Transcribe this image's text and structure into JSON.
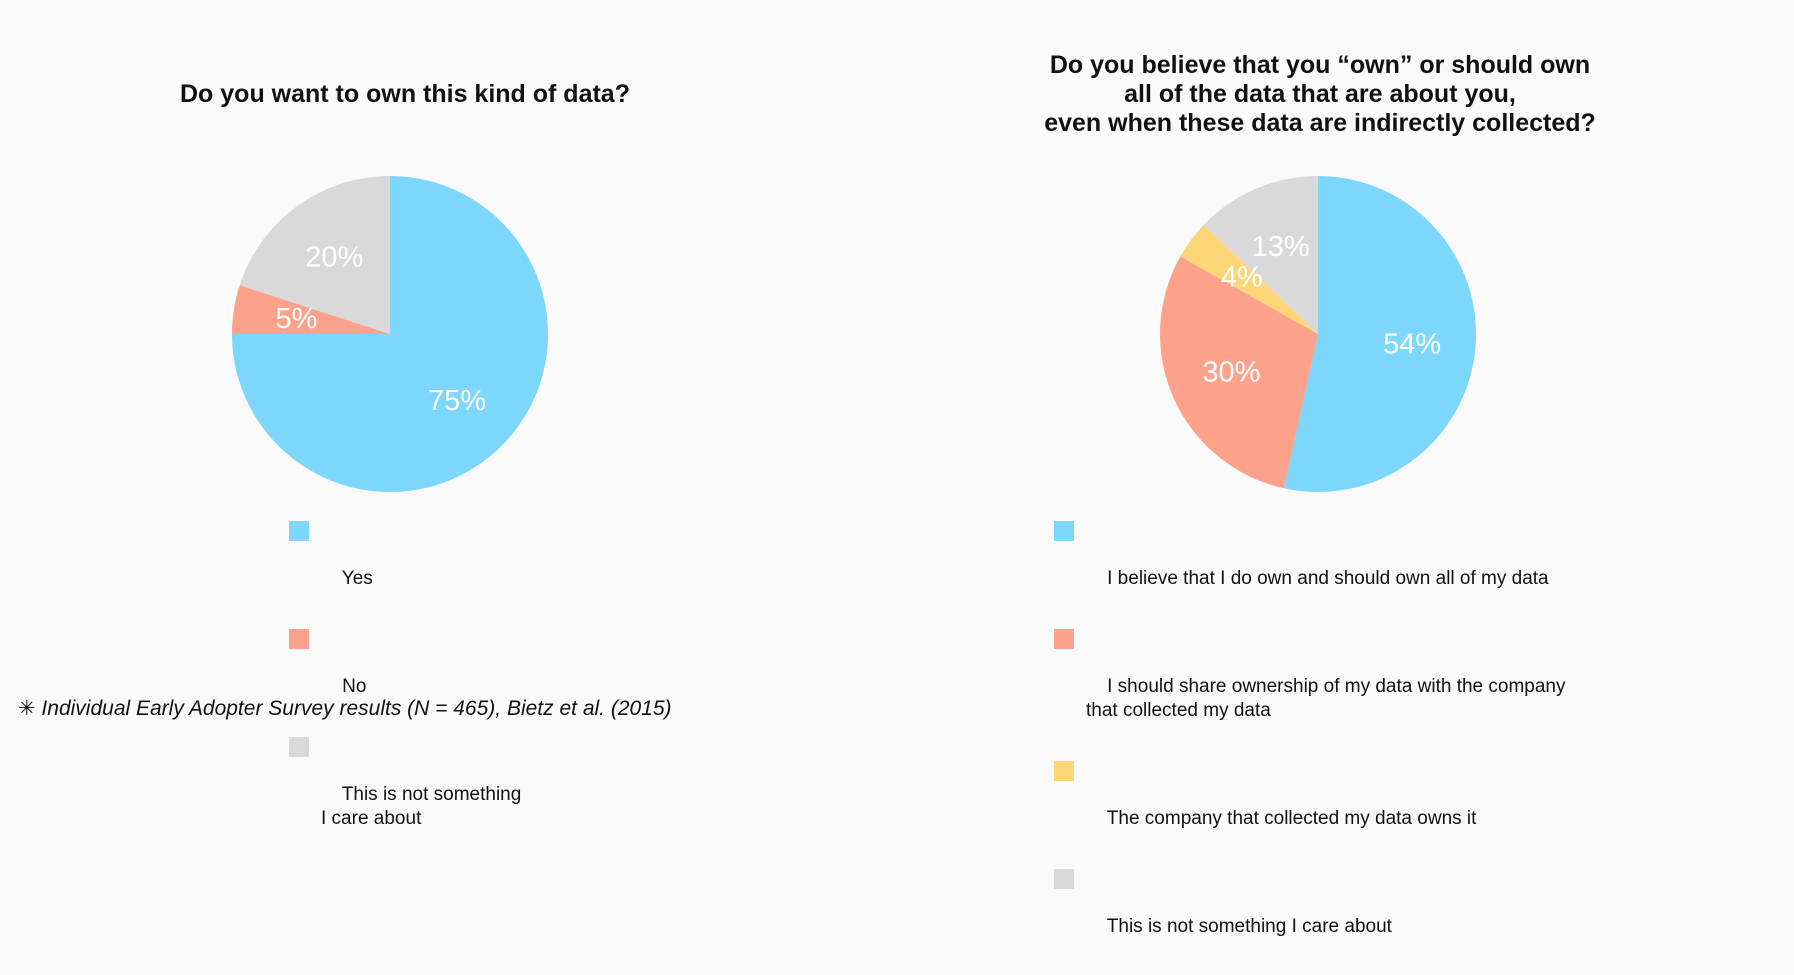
{
  "chart_data": [
    {
      "type": "pie",
      "title": "Do you want to own this kind of data?",
      "labels": [
        "Yes",
        "No",
        "This is not something\nI care about"
      ],
      "values": [
        75,
        5,
        20
      ],
      "value_labels": [
        "75%",
        "5%",
        "20%"
      ],
      "colors": [
        "#7dd6fb",
        "#fda28a",
        "#d9d9d9"
      ],
      "start": "top",
      "direction": "clockwise",
      "legend": "bottom"
    },
    {
      "type": "pie",
      "title": [
        "Do you believe that you “own” or should own",
        "all of the data that are about you,",
        "even when these data are indirectly collected?"
      ],
      "labels": [
        "I believe that I do own and should own all of my data",
        "I should share ownership of my data with the company\nthat collected my data",
        "The company that collected my data owns it",
        "This is not something I care about"
      ],
      "values": [
        54,
        30,
        4,
        13
      ],
      "value_labels": [
        "54%",
        "30%",
        "4%",
        "13%"
      ],
      "colors": [
        "#7dd6fb",
        "#fda28a",
        "#fdd677",
        "#d9d9d9"
      ],
      "start": "top",
      "direction": "clockwise",
      "legend": "bottom"
    }
  ],
  "footnote": "✳ Individual Early Adopter Survey results (N = 465), Bietz et al. (2015)"
}
